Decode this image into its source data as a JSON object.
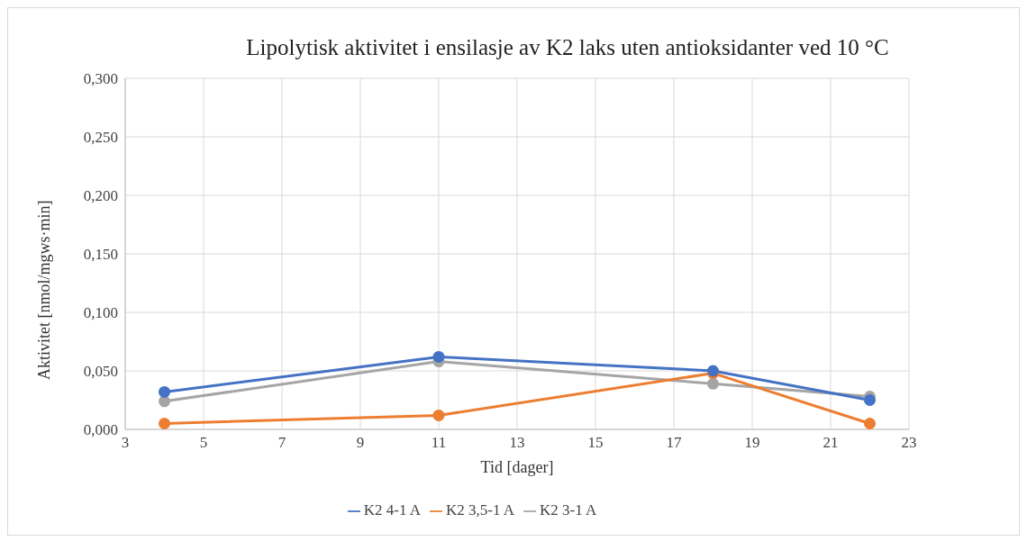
{
  "chart_data": {
    "type": "line",
    "title": "Lipolytisk aktivitet i ensilasje av K2 laks uten antioksidanter ved 10 °C",
    "xlabel": "Tid [dager]",
    "ylabel": "Aktivitet [nmol/mgws·min]",
    "x": [
      4,
      11,
      18,
      22
    ],
    "series": [
      {
        "name": "K2 4-1 A",
        "color": "#4472c4",
        "values": [
          0.032,
          0.062,
          0.05,
          0.025
        ]
      },
      {
        "name": "K2 3,5-1 A",
        "color": "#ed7d31",
        "values": [
          0.005,
          0.012,
          0.048,
          0.005
        ]
      },
      {
        "name": "K2 3-1 A",
        "color": "#a5a5a5",
        "values": [
          0.024,
          0.058,
          0.039,
          0.028
        ]
      }
    ],
    "xlim": [
      3,
      23
    ],
    "xticks": [
      3,
      5,
      7,
      9,
      11,
      13,
      15,
      17,
      19,
      21,
      23
    ],
    "ylim": [
      0,
      0.3
    ],
    "yticks": [
      {
        "value": 0,
        "label": "0,000"
      },
      {
        "value": 0.05,
        "label": "0,050"
      },
      {
        "value": 0.1,
        "label": "0,100"
      },
      {
        "value": 0.15,
        "label": "0,150"
      },
      {
        "value": 0.2,
        "label": "0,200"
      },
      {
        "value": 0.25,
        "label": "0,250"
      },
      {
        "value": 0.3,
        "label": "0,300"
      }
    ],
    "grid": true,
    "legend": "bottom",
    "marker": "circle",
    "line_style": "solid"
  }
}
